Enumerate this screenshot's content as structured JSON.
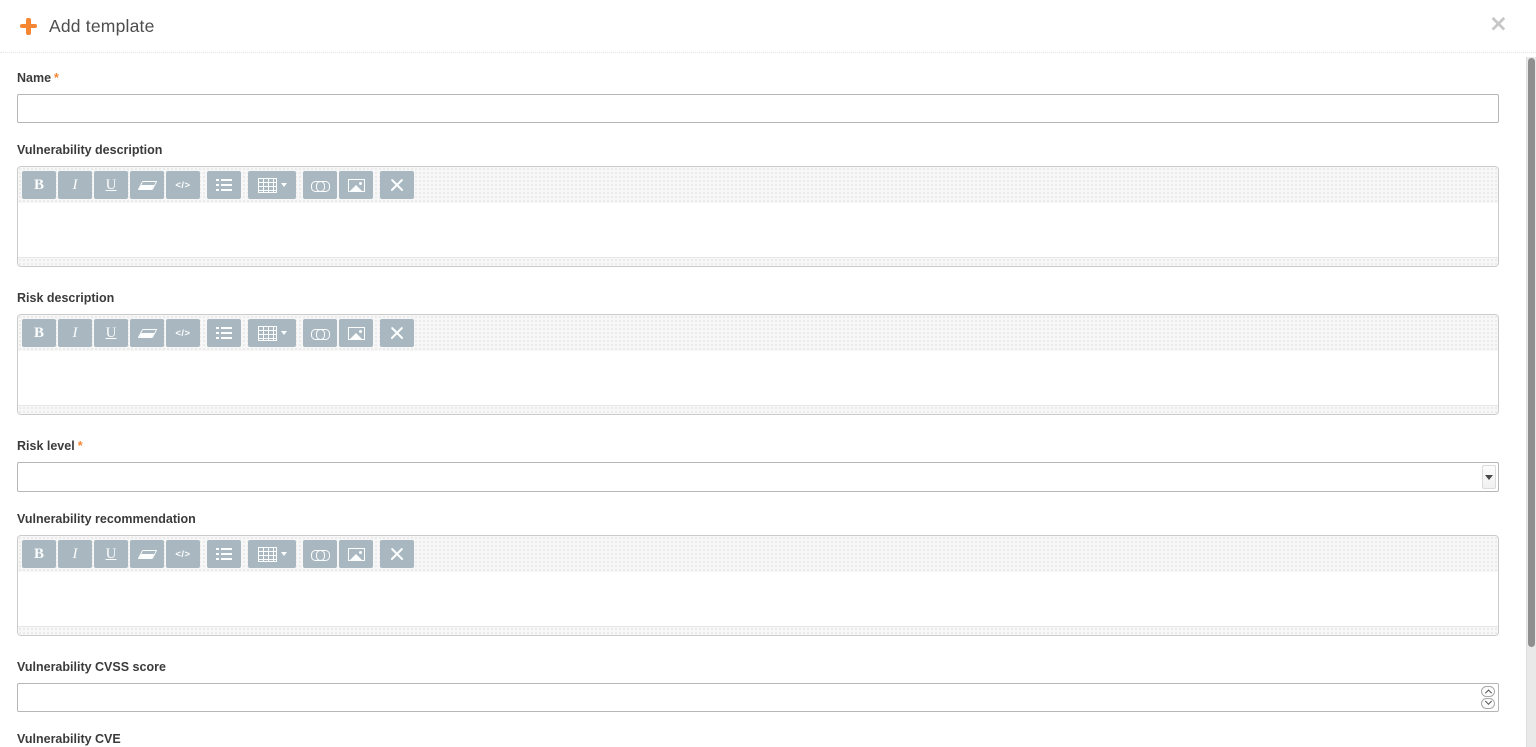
{
  "header": {
    "title": "Add template",
    "close_icon": "×"
  },
  "form": {
    "required_marker": "*",
    "fields": [
      {
        "id": "name",
        "label": "Name",
        "required": true,
        "type": "text",
        "value": "",
        "placeholder": ""
      },
      {
        "id": "vulnerability-description",
        "label": "Vulnerability description",
        "required": false,
        "type": "richtext",
        "value": ""
      },
      {
        "id": "risk-description",
        "label": "Risk description",
        "required": false,
        "type": "richtext",
        "value": ""
      },
      {
        "id": "risk-level",
        "label": "Risk level",
        "required": true,
        "type": "select",
        "value": ""
      },
      {
        "id": "vulnerability-recommendation",
        "label": "Vulnerability recommendation",
        "required": false,
        "type": "richtext",
        "value": ""
      },
      {
        "id": "vulnerability-cvss-score",
        "label": "Vulnerability CVSS score",
        "required": false,
        "type": "number",
        "value": ""
      },
      {
        "id": "vulnerability-cve",
        "label": "Vulnerability CVE",
        "required": false,
        "type": "text",
        "value": ""
      }
    ]
  },
  "editor_toolbar": {
    "buttons": [
      {
        "name": "bold",
        "glyph": "B",
        "group_start": true
      },
      {
        "name": "italic",
        "glyph": "I"
      },
      {
        "name": "underline",
        "glyph": "U"
      },
      {
        "name": "remove-format"
      },
      {
        "name": "code-view",
        "glyph": "</>"
      },
      {
        "name": "unordered-list",
        "group_start": true
      },
      {
        "name": "table",
        "group_start": true,
        "has_dropdown": true
      },
      {
        "name": "link",
        "group_start": true
      },
      {
        "name": "image"
      },
      {
        "name": "fullscreen",
        "group_start": true
      }
    ]
  },
  "colors": {
    "accent_orange": "#f58634",
    "toolbar_button": "#a9b8c0",
    "scrollbar_thumb": "#8f8f8f"
  }
}
